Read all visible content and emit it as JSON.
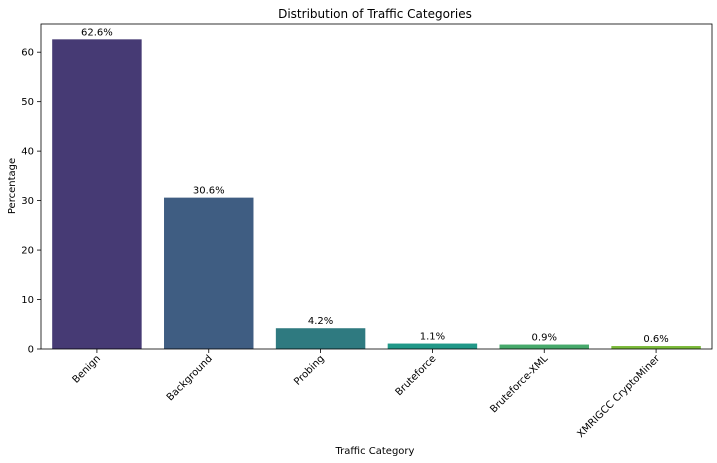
{
  "chart_data": {
    "type": "bar",
    "title": "Distribution of Traffic Categories",
    "xlabel": "Traffic Category",
    "ylabel": "Percentage",
    "categories": [
      "Benign",
      "Background",
      "Probing",
      "Bruteforce",
      "Bruteforce-XML",
      "XMRIGCC CryptoMiner"
    ],
    "values": [
      62.6,
      30.6,
      4.2,
      1.1,
      0.9,
      0.6
    ],
    "data_labels": [
      "62.6%",
      "30.6%",
      "4.2%",
      "1.1%",
      "0.9%",
      "0.6%"
    ],
    "colors": [
      "#463A74",
      "#3F5D82",
      "#2F7A80",
      "#219888",
      "#46A96B",
      "#7BBA3A"
    ],
    "ylim": [
      0,
      65.7
    ],
    "yticks": [
      0,
      10,
      20,
      30,
      40,
      50,
      60
    ],
    "grid": false,
    "legend": "none"
  }
}
